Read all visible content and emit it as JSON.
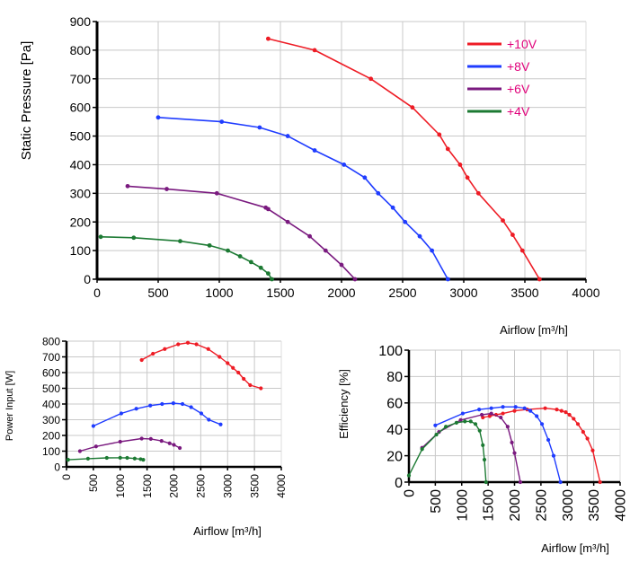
{
  "colors": {
    "s10": "#ee1c25",
    "s8": "#1f3cff",
    "s6": "#7a1a7f",
    "s4": "#1c7a33",
    "legend_text": "#e0007a",
    "grid": "#c8c8c8",
    "axis": "#000000"
  },
  "chart_data": [
    {
      "type": "line",
      "ylabel": "Static Pressure [Pa]",
      "xlabel": "Airflow [m³/h]",
      "xlim": [
        0,
        4000
      ],
      "ylim": [
        0,
        900
      ],
      "x_ticks": [
        "0",
        "500",
        "1000",
        "1500",
        "2000",
        "2500",
        "3000",
        "3500",
        "4000"
      ],
      "y_ticks": [
        "0",
        "100",
        "200",
        "300",
        "400",
        "500",
        "600",
        "700",
        "800",
        "900"
      ],
      "grid": true,
      "legend_position": "top-right",
      "series": [
        {
          "name": "+10V",
          "color_key": "s10",
          "points": [
            [
              1400,
              840
            ],
            [
              1780,
              800
            ],
            [
              2240,
              700
            ],
            [
              2580,
              600
            ],
            [
              2800,
              505
            ],
            [
              2870,
              455
            ],
            [
              2970,
              400
            ],
            [
              3030,
              355
            ],
            [
              3120,
              300
            ],
            [
              3320,
              205
            ],
            [
              3400,
              155
            ],
            [
              3480,
              100
            ],
            [
              3620,
              0
            ]
          ]
        },
        {
          "name": "+8V",
          "color_key": "s8",
          "points": [
            [
              500,
              565
            ],
            [
              1020,
              550
            ],
            [
              1330,
              530
            ],
            [
              1560,
              500
            ],
            [
              1780,
              450
            ],
            [
              2020,
              400
            ],
            [
              2190,
              355
            ],
            [
              2300,
              300
            ],
            [
              2420,
              250
            ],
            [
              2520,
              200
            ],
            [
              2640,
              150
            ],
            [
              2740,
              100
            ],
            [
              2870,
              0
            ]
          ]
        },
        {
          "name": "+6V",
          "color_key": "s6",
          "points": [
            [
              250,
              325
            ],
            [
              570,
              315
            ],
            [
              980,
              300
            ],
            [
              1380,
              250
            ],
            [
              1400,
              245
            ],
            [
              1560,
              200
            ],
            [
              1740,
              150
            ],
            [
              1870,
              100
            ],
            [
              2000,
              50
            ],
            [
              2110,
              0
            ]
          ]
        },
        {
          "name": "+4V",
          "color_key": "s4",
          "points": [
            [
              30,
              148
            ],
            [
              300,
              145
            ],
            [
              680,
              133
            ],
            [
              920,
              118
            ],
            [
              1070,
              100
            ],
            [
              1170,
              80
            ],
            [
              1260,
              60
            ],
            [
              1340,
              40
            ],
            [
              1400,
              20
            ],
            [
              1430,
              0
            ]
          ]
        }
      ]
    },
    {
      "type": "line",
      "ylabel": "Power Input [W]",
      "xlabel": "Airflow [m³/h]",
      "xlim": [
        0,
        4000
      ],
      "ylim": [
        0,
        800
      ],
      "x_ticks": [
        "0",
        "500",
        "1000",
        "1500",
        "2000",
        "2500",
        "3000",
        "3500",
        "4000"
      ],
      "y_ticks": [
        "0",
        "100",
        "200",
        "300",
        "400",
        "500",
        "600",
        "700",
        "800"
      ],
      "grid": true,
      "series": [
        {
          "color_key": "s10",
          "points": [
            [
              1400,
              680
            ],
            [
              1610,
              720
            ],
            [
              1830,
              750
            ],
            [
              2080,
              780
            ],
            [
              2260,
              790
            ],
            [
              2420,
              780
            ],
            [
              2640,
              750
            ],
            [
              2850,
              700
            ],
            [
              3000,
              660
            ],
            [
              3100,
              630
            ],
            [
              3200,
              600
            ],
            [
              3300,
              560
            ],
            [
              3420,
              520
            ],
            [
              3620,
              500
            ]
          ]
        },
        {
          "color_key": "s8",
          "points": [
            [
              500,
              260
            ],
            [
              1020,
              340
            ],
            [
              1300,
              370
            ],
            [
              1560,
              390
            ],
            [
              1780,
              400
            ],
            [
              1990,
              405
            ],
            [
              2160,
              400
            ],
            [
              2320,
              380
            ],
            [
              2510,
              340
            ],
            [
              2650,
              300
            ],
            [
              2870,
              270
            ]
          ]
        },
        {
          "color_key": "s6",
          "points": [
            [
              250,
              100
            ],
            [
              550,
              130
            ],
            [
              1000,
              160
            ],
            [
              1400,
              180
            ],
            [
              1570,
              178
            ],
            [
              1770,
              165
            ],
            [
              1920,
              150
            ],
            [
              2000,
              140
            ],
            [
              2110,
              120
            ]
          ]
        },
        {
          "color_key": "s4",
          "points": [
            [
              30,
              45
            ],
            [
              400,
              52
            ],
            [
              750,
              57
            ],
            [
              1000,
              58
            ],
            [
              1130,
              57
            ],
            [
              1270,
              53
            ],
            [
              1380,
              49
            ],
            [
              1430,
              45
            ]
          ]
        }
      ]
    },
    {
      "type": "line",
      "ylabel": "Efficiency [%]",
      "xlabel": "Airflow [m³/h]",
      "xlim": [
        0,
        4000
      ],
      "ylim": [
        0,
        100
      ],
      "x_ticks": [
        "0",
        "500",
        "1000",
        "1500",
        "2000",
        "2500",
        "3000",
        "3500",
        "4000"
      ],
      "y_ticks": [
        "0",
        "20",
        "40",
        "60",
        "80",
        "100"
      ],
      "grid": true,
      "series": [
        {
          "color_key": "s10",
          "points": [
            [
              1400,
              49
            ],
            [
              1530,
              50
            ],
            [
              1650,
              51
            ],
            [
              1780,
              52
            ],
            [
              2000,
              54
            ],
            [
              2240,
              55
            ],
            [
              2580,
              56
            ],
            [
              2800,
              55
            ],
            [
              2890,
              54
            ],
            [
              2970,
              53
            ],
            [
              3040,
              51
            ],
            [
              3120,
              48
            ],
            [
              3200,
              44
            ],
            [
              3300,
              38
            ],
            [
              3380,
              33
            ],
            [
              3480,
              24
            ],
            [
              3620,
              0
            ]
          ]
        },
        {
          "color_key": "s8",
          "points": [
            [
              500,
              43
            ],
            [
              1020,
              52
            ],
            [
              1330,
              55
            ],
            [
              1560,
              56
            ],
            [
              1780,
              57
            ],
            [
              2020,
              57
            ],
            [
              2190,
              56
            ],
            [
              2300,
              54
            ],
            [
              2420,
              50
            ],
            [
              2520,
              44
            ],
            [
              2640,
              32
            ],
            [
              2740,
              20
            ],
            [
              2870,
              0
            ]
          ]
        },
        {
          "color_key": "s6",
          "points": [
            [
              250,
              26
            ],
            [
              570,
              38
            ],
            [
              980,
              47
            ],
            [
              1380,
              51
            ],
            [
              1560,
              52
            ],
            [
              1740,
              49
            ],
            [
              1870,
              42
            ],
            [
              1950,
              30
            ],
            [
              2000,
              22
            ],
            [
              2110,
              0
            ]
          ]
        },
        {
          "color_key": "s4",
          "points": [
            [
              0,
              5
            ],
            [
              250,
              25
            ],
            [
              520,
              36
            ],
            [
              700,
              42
            ],
            [
              900,
              45
            ],
            [
              1060,
              46
            ],
            [
              1170,
              46
            ],
            [
              1260,
              44
            ],
            [
              1340,
              39
            ],
            [
              1400,
              28
            ],
            [
              1430,
              17
            ],
            [
              1460,
              0
            ]
          ]
        }
      ]
    }
  ]
}
